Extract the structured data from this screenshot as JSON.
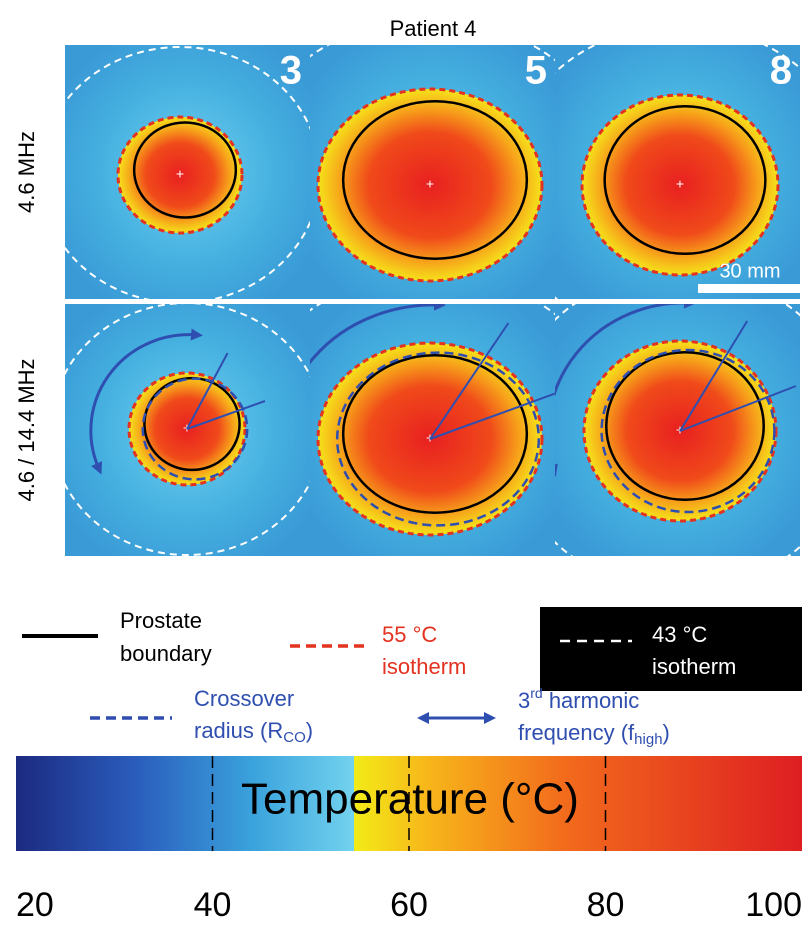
{
  "title": "Patient 4",
  "rows": [
    "4.6 MHz",
    "4.6 / 14.4 MHz"
  ],
  "panels": [
    {
      "label": "3"
    },
    {
      "label": "5"
    },
    {
      "label": "8"
    }
  ],
  "scale_bar": "30 mm",
  "legend": {
    "prostate": [
      "Prostate",
      "boundary"
    ],
    "isotherm55": [
      "55 °C",
      "isotherm"
    ],
    "isotherm43": [
      "43 °C",
      "isotherm"
    ],
    "crossover": {
      "line1": "Crossover",
      "line2": "radius (R",
      "sub": "CO",
      "end": ")"
    },
    "harmonic": {
      "num": "3",
      "sup": "rd",
      "rest": " harmonic",
      "line2": "frequency (f",
      "sub": "high",
      "end": ")"
    }
  },
  "colorbar": {
    "label": "Temperature (°C)",
    "range": [
      20,
      100
    ],
    "ticks": [
      20,
      40,
      60,
      80,
      100
    ]
  }
}
